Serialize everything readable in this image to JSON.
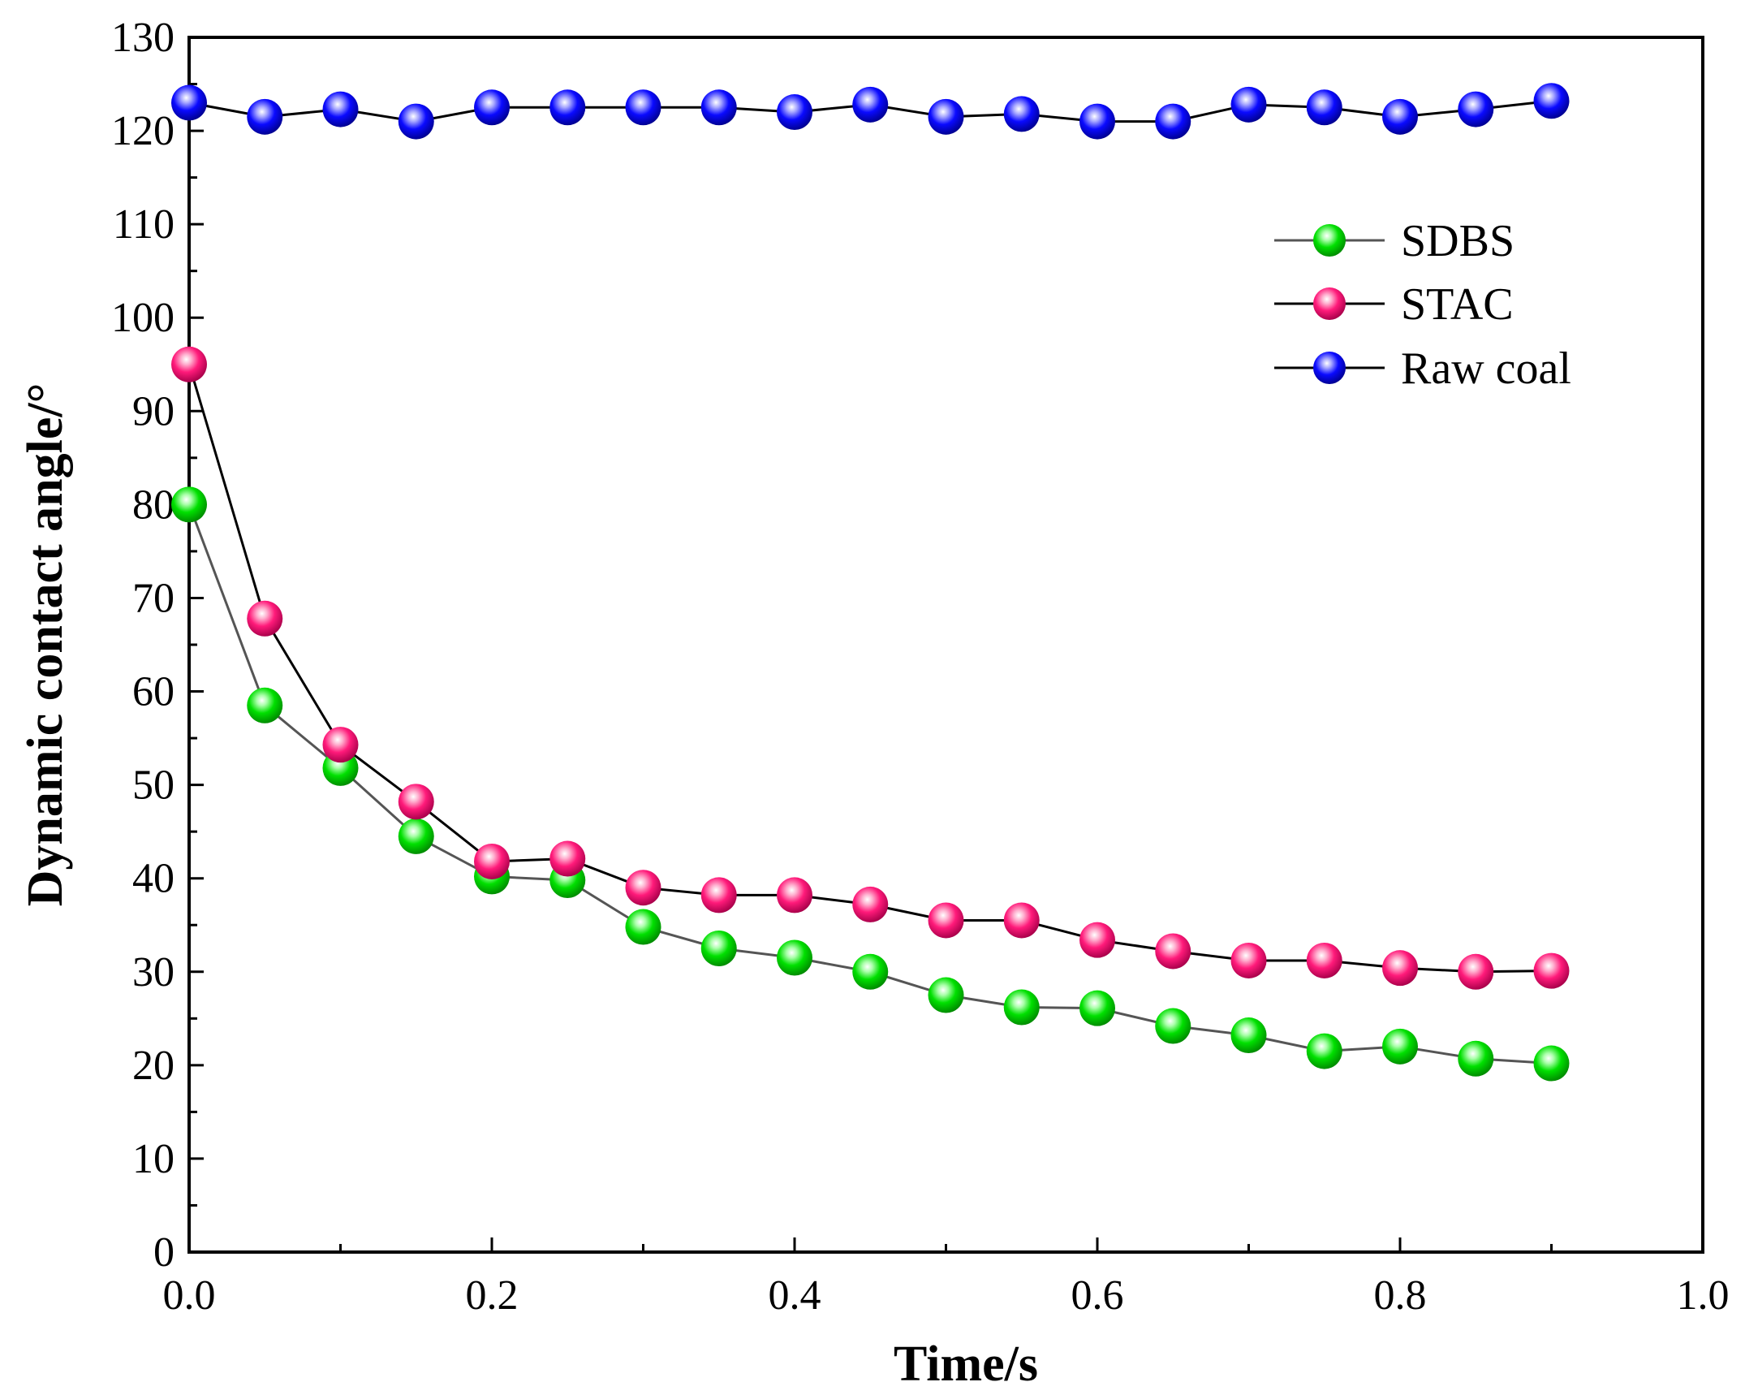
{
  "chart_data": {
    "type": "line",
    "title": "",
    "xlabel": "Time/s",
    "ylabel": "Dynamic contact angle/°",
    "xlim": [
      0.0,
      1.0
    ],
    "ylim": [
      0,
      130
    ],
    "x_ticks": [
      "0.0",
      "0.2",
      "0.4",
      "0.6",
      "0.8",
      "1.0"
    ],
    "y_ticks": [
      "0",
      "10",
      "20",
      "30",
      "40",
      "50",
      "60",
      "70",
      "80",
      "90",
      "100",
      "110",
      "120",
      "130"
    ],
    "x": [
      0.0,
      0.05,
      0.1,
      0.15,
      0.2,
      0.25,
      0.3,
      0.35,
      0.4,
      0.45,
      0.5,
      0.55,
      0.6,
      0.65,
      0.7,
      0.75,
      0.8,
      0.85,
      0.9
    ],
    "legend_position": "upper-right",
    "series": [
      {
        "name": "SDBS",
        "color": "#00e000",
        "line_color": "#555555",
        "values": [
          80,
          58.5,
          51.8,
          44.5,
          40.2,
          39.8,
          34.8,
          32.5,
          31.5,
          30,
          27.5,
          26.2,
          26.1,
          24.2,
          23.2,
          21.5,
          22,
          20.7,
          20.2
        ]
      },
      {
        "name": "STAC",
        "color": "#ff1a7a",
        "line_color": "#000000",
        "values": [
          95,
          67.8,
          54.3,
          48.2,
          41.8,
          42.1,
          39,
          38.2,
          38.2,
          37.2,
          35.5,
          35.5,
          33.4,
          32.2,
          31.2,
          31.2,
          30.4,
          30,
          30.1
        ]
      },
      {
        "name": "Raw coal",
        "color": "#0a0aff",
        "line_color": "#000000",
        "values": [
          123,
          121.5,
          122.3,
          121,
          122.5,
          122.5,
          122.5,
          122.5,
          122,
          122.8,
          121.5,
          121.8,
          121,
          121,
          122.8,
          122.5,
          121.5,
          122.3,
          123.2
        ]
      }
    ]
  }
}
